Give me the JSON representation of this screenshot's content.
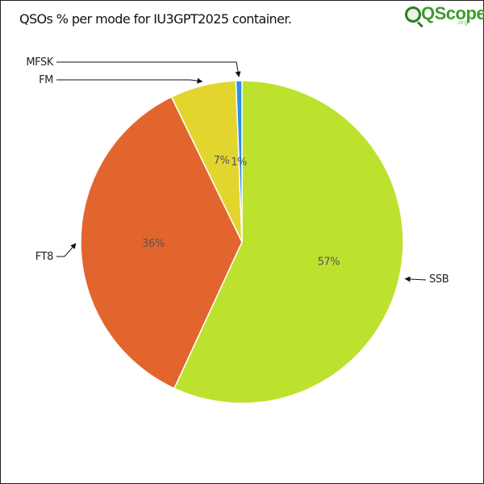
{
  "title": "QSOs % per mode for IU3GPT2025 container.",
  "logo": {
    "text": "QScope",
    "suffix": ".org",
    "icon": "magnifier-icon"
  },
  "chart_data": {
    "type": "pie",
    "title": "QSOs % per mode for IU3GPT2025 container.",
    "start_angle_deg": 0,
    "direction": "clockwise",
    "slices": [
      {
        "label": "SSB",
        "value": 56.9,
        "pct_label": "57%",
        "color": "#bde22e"
      },
      {
        "label": "FT8",
        "value": 35.9,
        "pct_label": "36%",
        "color": "#e2652e"
      },
      {
        "label": "FM",
        "value": 6.6,
        "pct_label": "7%",
        "color": "#e2d62e"
      },
      {
        "label": "MFSK",
        "value": 0.6,
        "pct_label": "1%",
        "color": "#2e90e2"
      }
    ]
  }
}
